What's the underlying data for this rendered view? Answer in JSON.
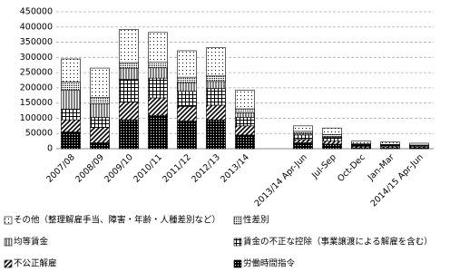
{
  "chart_data": {
    "type": "bar",
    "stacked": true,
    "categories": [
      "2007/08",
      "2008/09",
      "2009/10",
      "2010/11",
      "2011/12",
      "2012/13",
      "2013/14",
      null,
      "2013/14 Apr-Jun",
      "Jul-Sep",
      "Oct-Dec",
      "Jan-Mar",
      "2014/15 Apr-Jun"
    ],
    "series": [
      {
        "name": "労働時間指令",
        "color": "#000000",
        "pattern": "black-dots",
        "values": [
          55000,
          20000,
          95000,
          110000,
          92000,
          95000,
          45000,
          null,
          20000,
          15000,
          3000,
          3000,
          2000
        ]
      },
      {
        "name": "不公正解雇",
        "color": "#000000",
        "pattern": "diagonal",
        "values": [
          40000,
          50000,
          58000,
          57000,
          47000,
          48000,
          30000,
          null,
          10000,
          10000,
          5000,
          4000,
          4000
        ]
      },
      {
        "name": "賃金の不正な控除（事業譲渡による解雇を含む）",
        "color": "#000000",
        "pattern": "grid",
        "values": [
          35000,
          33000,
          75000,
          65000,
          50000,
          55000,
          28000,
          null,
          15000,
          12000,
          4000,
          3000,
          3000
        ]
      },
      {
        "name": "均等賃金",
        "color": "#000000",
        "pattern": "vertical",
        "values": [
          62000,
          45000,
          37000,
          34000,
          28000,
          23000,
          15000,
          null,
          5000,
          4000,
          2000,
          2000,
          1000
        ]
      },
      {
        "name": "性差別",
        "color": "#000000",
        "pattern": "dense-dots",
        "values": [
          27000,
          20000,
          18000,
          18000,
          18000,
          18000,
          13000,
          null,
          7000,
          6000,
          2000,
          2000,
          2000
        ]
      },
      {
        "name": "その他（整理解雇手当、障害・年齢・人種差別など）",
        "color": "#000000",
        "pattern": "sparse-dots",
        "values": [
          76000,
          97000,
          109000,
          98000,
          87000,
          93000,
          61000,
          null,
          18000,
          21000,
          9000,
          8000,
          6000
        ]
      }
    ],
    "ylim": [
      0,
      450000
    ],
    "yticks": [
      0,
      50000,
      100000,
      150000,
      200000,
      250000,
      300000,
      350000,
      400000,
      450000
    ],
    "grid": true,
    "legend": "bottom"
  }
}
